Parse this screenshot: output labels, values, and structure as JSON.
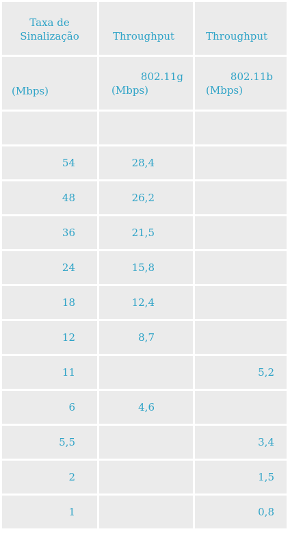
{
  "header": {
    "col1_line1": "Taxa  de",
    "col1_line2": "Sinalização",
    "col2": "Throughput",
    "col3": "Throughput",
    "col1_unit": "(Mbps)",
    "col2_std": "802.11g",
    "col2_unit": "(Mbps)",
    "col3_std": "802.11b",
    "col3_unit": "(Mbps)"
  },
  "rows": [
    {
      "rate": "54",
      "g": "28,4",
      "b": ""
    },
    {
      "rate": "48",
      "g": "26,2",
      "b": ""
    },
    {
      "rate": "36",
      "g": "21,5",
      "b": ""
    },
    {
      "rate": "24",
      "g": "15,8",
      "b": ""
    },
    {
      "rate": "18",
      "g": "12,4",
      "b": ""
    },
    {
      "rate": "12",
      "g": "8,7",
      "b": ""
    },
    {
      "rate": "11",
      "g": "",
      "b": "5,2"
    },
    {
      "rate": "6",
      "g": "4,6",
      "b": ""
    },
    {
      "rate": "5,5",
      "g": "",
      "b": "3,4"
    },
    {
      "rate": "2",
      "g": "",
      "b": "1,5"
    },
    {
      "rate": "1",
      "g": "",
      "b": "0,8"
    }
  ]
}
